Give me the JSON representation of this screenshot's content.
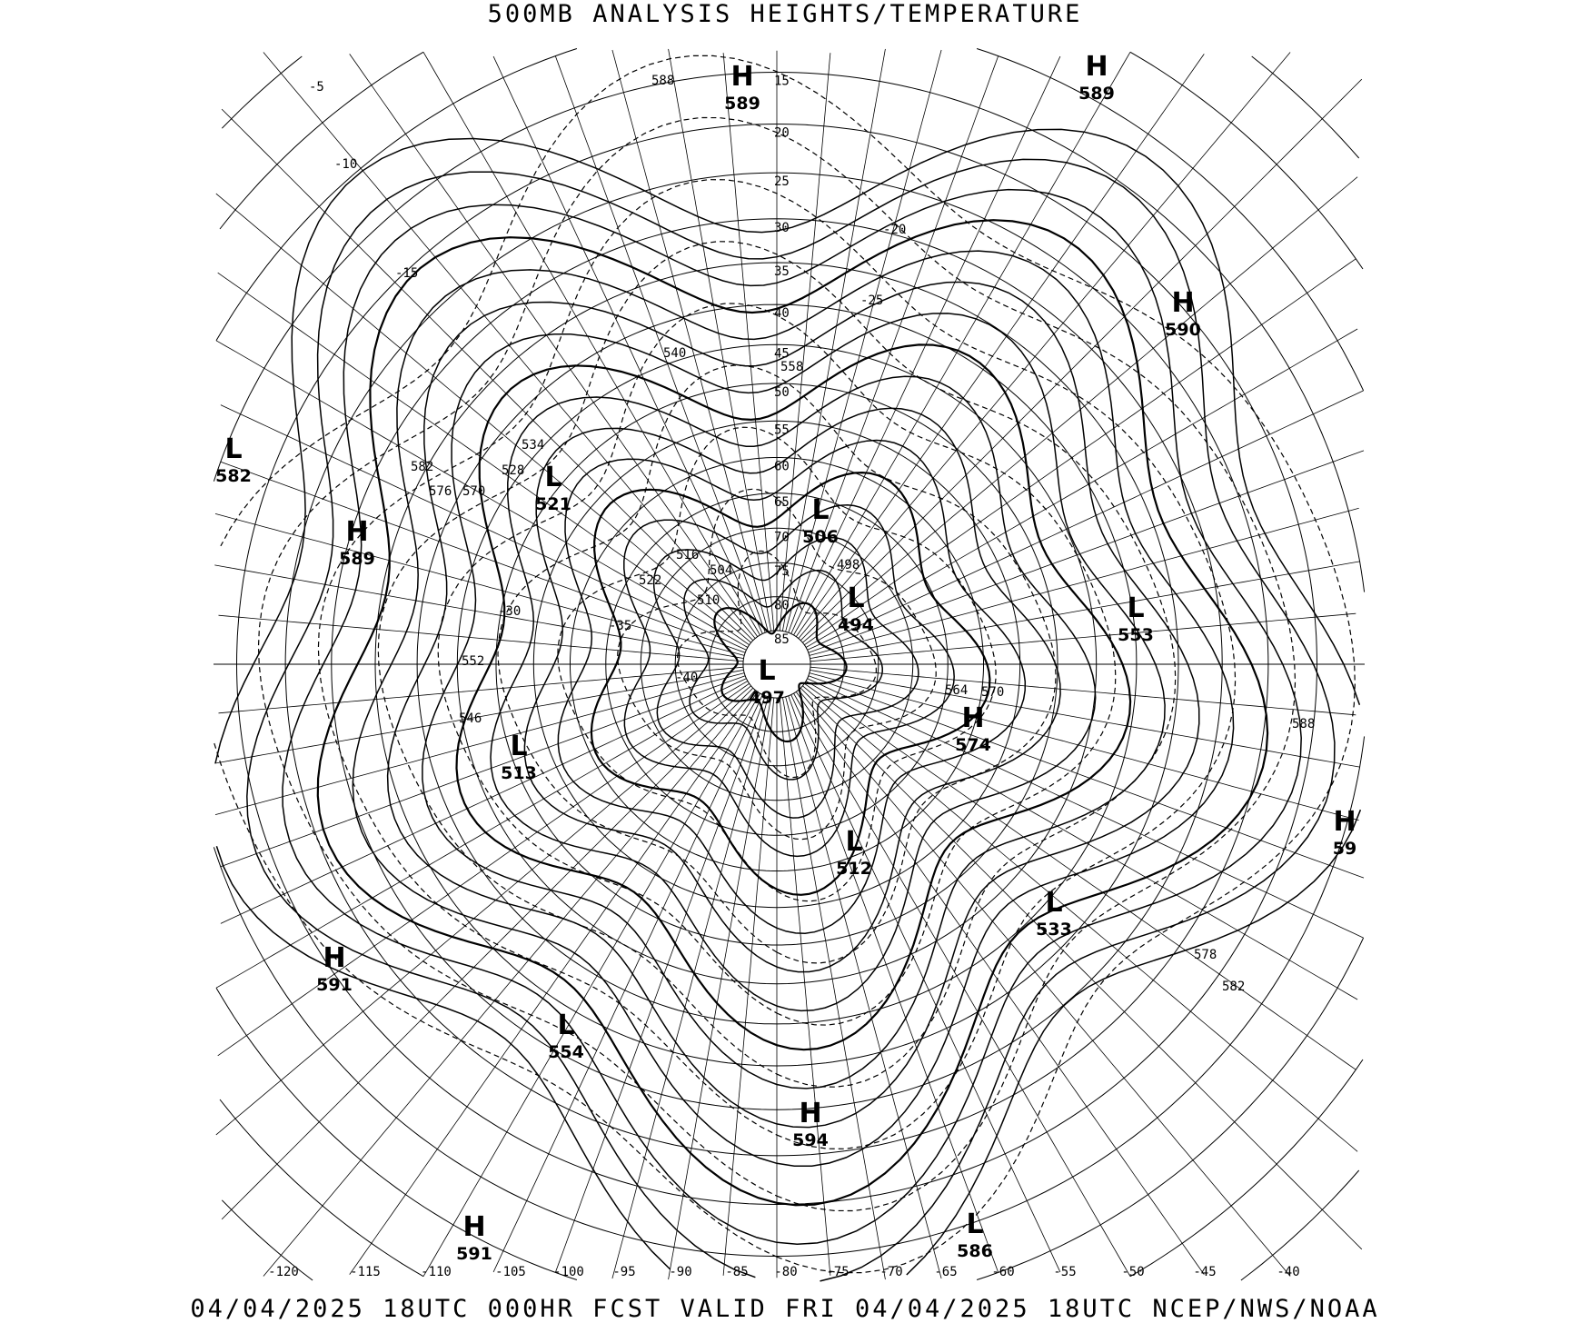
{
  "header": {
    "title": "500MB ANALYSIS  HEIGHTS/TEMPERATURE"
  },
  "footer": {
    "text": "04/04/2025 18UTC 000HR FCST VALID FRI 04/04/2025 18UTC  NCEP/NWS/NOAA"
  },
  "map": {
    "projection": "polar stereographic (north pole)",
    "line_color": "#000000",
    "background": "#ffffff",
    "latitude_labels": [
      "15",
      "20",
      "25",
      "30",
      "35",
      "40",
      "45",
      "50",
      "55",
      "60",
      "65",
      "70",
      "75",
      "80",
      "85"
    ],
    "longitude_labels": [
      "-120",
      "-115",
      "-110",
      "-105",
      "-100",
      "-95",
      "-90",
      "-85",
      "-80",
      "-75",
      "-70",
      "-65",
      "-60",
      "-55",
      "-50",
      "-45",
      "-40"
    ],
    "pressure_centers": [
      {
        "type": "H",
        "value": "589"
      },
      {
        "type": "H",
        "value": "589"
      },
      {
        "type": "H",
        "value": "590"
      },
      {
        "type": "L",
        "value": "582"
      },
      {
        "type": "H",
        "value": "589"
      },
      {
        "type": "L",
        "value": "521"
      },
      {
        "type": "L",
        "value": "506"
      },
      {
        "type": "L",
        "value": "494"
      },
      {
        "type": "L",
        "value": "497"
      },
      {
        "type": "H",
        "value": "574"
      },
      {
        "type": "L",
        "value": "553"
      },
      {
        "type": "L",
        "value": "513"
      },
      {
        "type": "L",
        "value": "512"
      },
      {
        "type": "L",
        "value": "533"
      },
      {
        "type": "H",
        "value": "59"
      },
      {
        "type": "H",
        "value": "591"
      },
      {
        "type": "L",
        "value": "554"
      },
      {
        "type": "H",
        "value": "594"
      },
      {
        "type": "L",
        "value": "586"
      },
      {
        "type": "H",
        "value": "591"
      }
    ],
    "height_contour_labels": [
      "588",
      "558",
      "540",
      "534",
      "528",
      "582",
      "576",
      "570",
      "516",
      "522",
      "510",
      "504",
      "498",
      "552",
      "546",
      "564",
      "570",
      "578",
      "582",
      "588"
    ],
    "temperature_contour_labels": [
      "-5",
      "-10",
      "-15",
      "-20",
      "-25",
      "-30",
      "-35",
      "-40"
    ]
  }
}
